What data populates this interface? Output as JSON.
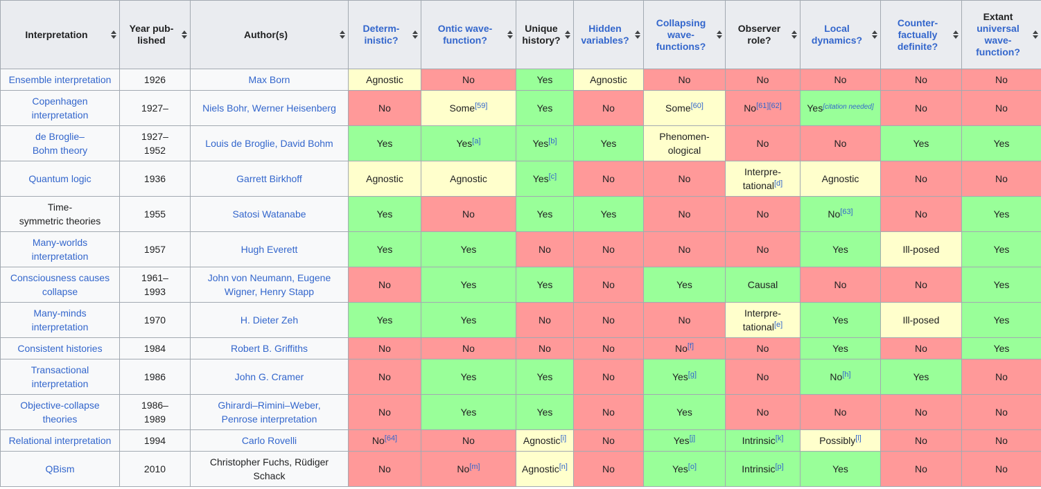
{
  "colors": {
    "yes": "#99FF99",
    "no": "#FF9999",
    "partial": "#FFFFCC"
  },
  "table": {
    "headers": [
      {
        "id": "interpretation",
        "segments": [
          {
            "text": "Interpretation",
            "link": false
          }
        ]
      },
      {
        "id": "year-published",
        "segments": [
          {
            "text": "Year pub-\nlished",
            "link": false
          }
        ]
      },
      {
        "id": "authors",
        "segments": [
          {
            "text": "Author(s)",
            "link": false
          }
        ]
      },
      {
        "id": "deterministic",
        "segments": [
          {
            "text": "Determ-\ninistic?",
            "link": true
          }
        ]
      },
      {
        "id": "ontic-wave-function",
        "segments": [
          {
            "text": "Ontic wave-\nfunction?",
            "link": true
          }
        ]
      },
      {
        "id": "unique-history",
        "segments": [
          {
            "text": "Unique\nhistory?",
            "link": false
          }
        ]
      },
      {
        "id": "hidden-variables",
        "segments": [
          {
            "text": "Hidden\nvariables?",
            "link": true
          }
        ]
      },
      {
        "id": "collapsing-wave-functions",
        "segments": [
          {
            "text": "Collapsing\nwave-\nfunctions?",
            "link": true
          }
        ]
      },
      {
        "id": "observer-role",
        "segments": [
          {
            "text": "Observer\nrole?",
            "link": false
          }
        ]
      },
      {
        "id": "local-dynamics",
        "segments": [
          {
            "text": "Local\ndynamics?",
            "link": true
          }
        ]
      },
      {
        "id": "counterfactually-definite",
        "segments": [
          {
            "text": "Counter-\nfactually\ndefinite?",
            "link": true
          }
        ]
      },
      {
        "id": "extant-universal-wave-function",
        "segments": [
          {
            "text": "Extant\n",
            "link": false
          },
          {
            "text": "universal\nwave-\nfunction?",
            "link": true
          }
        ]
      }
    ],
    "rows": [
      {
        "interpretation": {
          "text": "Ensemble interpretation",
          "link": true
        },
        "year": "1926",
        "authors": {
          "text": "Max Born",
          "link": true
        },
        "values": [
          {
            "text": "Agnostic",
            "color": "partial"
          },
          {
            "text": "No",
            "color": "no"
          },
          {
            "text": "Yes",
            "color": "yes"
          },
          {
            "text": "Agnostic",
            "color": "partial"
          },
          {
            "text": "No",
            "color": "no"
          },
          {
            "text": "No",
            "color": "no"
          },
          {
            "text": "No",
            "color": "no"
          },
          {
            "text": "No",
            "color": "no"
          },
          {
            "text": "No",
            "color": "no"
          }
        ]
      },
      {
        "interpretation": {
          "text": "Copenhagen\ninterpretation",
          "link": true
        },
        "year": "1927–",
        "authors": {
          "text": "Niels Bohr, Werner Heisenberg",
          "link": true
        },
        "values": [
          {
            "text": "No",
            "color": "no"
          },
          {
            "text": "Some",
            "sup": "[59]",
            "color": "partial"
          },
          {
            "text": "Yes",
            "color": "yes"
          },
          {
            "text": "No",
            "color": "no"
          },
          {
            "text": "Some",
            "sup": "[60]",
            "color": "partial"
          },
          {
            "text": "No",
            "sup": "[61][62]",
            "color": "no"
          },
          {
            "text": "Yes",
            "sup": "[citation needed]",
            "sup_italic": true,
            "color": "yes"
          },
          {
            "text": "No",
            "color": "no"
          },
          {
            "text": "No",
            "color": "no"
          }
        ]
      },
      {
        "interpretation": {
          "text": "de Broglie–\nBohm theory",
          "link": true
        },
        "year": "1927–\n1952",
        "authors": {
          "text": "Louis de Broglie, David Bohm",
          "link": true
        },
        "values": [
          {
            "text": "Yes",
            "color": "yes"
          },
          {
            "text": "Yes",
            "sup": "[a]",
            "color": "yes"
          },
          {
            "text": "Yes",
            "sup": "[b]",
            "color": "yes"
          },
          {
            "text": "Yes",
            "color": "yes"
          },
          {
            "text": "Phenomen-\nological",
            "color": "partial"
          },
          {
            "text": "No",
            "color": "no"
          },
          {
            "text": "No",
            "color": "no"
          },
          {
            "text": "Yes",
            "color": "yes"
          },
          {
            "text": "Yes",
            "color": "yes"
          }
        ]
      },
      {
        "interpretation": {
          "text": "Quantum logic",
          "link": true
        },
        "year": "1936",
        "authors": {
          "text": "Garrett Birkhoff",
          "link": true
        },
        "values": [
          {
            "text": "Agnostic",
            "color": "partial"
          },
          {
            "text": "Agnostic",
            "color": "partial"
          },
          {
            "text": "Yes",
            "sup": "[c]",
            "color": "yes"
          },
          {
            "text": "No",
            "color": "no"
          },
          {
            "text": "No",
            "color": "no"
          },
          {
            "text": "Interpre-\ntational",
            "sup": "[d]",
            "color": "partial"
          },
          {
            "text": "Agnostic",
            "color": "partial"
          },
          {
            "text": "No",
            "color": "no"
          },
          {
            "text": "No",
            "color": "no"
          }
        ]
      },
      {
        "interpretation": {
          "text": "Time-\nsymmetric theories",
          "link": false
        },
        "year": "1955",
        "authors": {
          "text": "Satosi Watanabe",
          "link": true
        },
        "values": [
          {
            "text": "Yes",
            "color": "yes"
          },
          {
            "text": "No",
            "color": "no"
          },
          {
            "text": "Yes",
            "color": "yes"
          },
          {
            "text": "Yes",
            "color": "yes"
          },
          {
            "text": "No",
            "color": "no"
          },
          {
            "text": "No",
            "color": "no"
          },
          {
            "text": "No",
            "sup": "[63]",
            "color": "yes"
          },
          {
            "text": "No",
            "color": "no"
          },
          {
            "text": "Yes",
            "color": "yes"
          }
        ]
      },
      {
        "interpretation": {
          "text": "Many-worlds\ninterpretation",
          "link": true
        },
        "year": "1957",
        "authors": {
          "text": "Hugh Everett",
          "link": true
        },
        "values": [
          {
            "text": "Yes",
            "color": "yes"
          },
          {
            "text": "Yes",
            "color": "yes"
          },
          {
            "text": "No",
            "color": "no"
          },
          {
            "text": "No",
            "color": "no"
          },
          {
            "text": "No",
            "color": "no"
          },
          {
            "text": "No",
            "color": "no"
          },
          {
            "text": "Yes",
            "color": "yes"
          },
          {
            "text": "Ill-posed",
            "color": "partial"
          },
          {
            "text": "Yes",
            "color": "yes"
          }
        ]
      },
      {
        "interpretation": {
          "text": "Consciousness causes\ncollapse",
          "link": true
        },
        "year": "1961–\n1993",
        "authors": {
          "text": "John von Neumann, Eugene\nWigner, Henry Stapp",
          "link": true
        },
        "values": [
          {
            "text": "No",
            "color": "no"
          },
          {
            "text": "Yes",
            "color": "yes"
          },
          {
            "text": "Yes",
            "color": "yes"
          },
          {
            "text": "No",
            "color": "no"
          },
          {
            "text": "Yes",
            "color": "yes"
          },
          {
            "text": "Causal",
            "color": "yes"
          },
          {
            "text": "No",
            "color": "no"
          },
          {
            "text": "No",
            "color": "no"
          },
          {
            "text": "Yes",
            "color": "yes"
          }
        ]
      },
      {
        "interpretation": {
          "text": "Many-minds\ninterpretation",
          "link": true
        },
        "year": "1970",
        "authors": {
          "text": "H. Dieter Zeh",
          "link": true
        },
        "values": [
          {
            "text": "Yes",
            "color": "yes"
          },
          {
            "text": "Yes",
            "color": "yes"
          },
          {
            "text": "No",
            "color": "no"
          },
          {
            "text": "No",
            "color": "no"
          },
          {
            "text": "No",
            "color": "no"
          },
          {
            "text": "Interpre-\ntational",
            "sup": "[e]",
            "color": "partial"
          },
          {
            "text": "Yes",
            "color": "yes"
          },
          {
            "text": "Ill-posed",
            "color": "partial"
          },
          {
            "text": "Yes",
            "color": "yes"
          }
        ]
      },
      {
        "interpretation": {
          "text": "Consistent histories",
          "link": true
        },
        "year": "1984",
        "authors": {
          "text": "Robert B. Griffiths",
          "link": true
        },
        "values": [
          {
            "text": "No",
            "color": "no"
          },
          {
            "text": "No",
            "color": "no"
          },
          {
            "text": "No",
            "color": "no"
          },
          {
            "text": "No",
            "color": "no"
          },
          {
            "text": "No",
            "sup": "[f]",
            "color": "no"
          },
          {
            "text": "No",
            "color": "no"
          },
          {
            "text": "Yes",
            "color": "yes"
          },
          {
            "text": "No",
            "color": "no"
          },
          {
            "text": "Yes",
            "color": "yes"
          }
        ]
      },
      {
        "interpretation": {
          "text": "Transactional\ninterpretation",
          "link": true
        },
        "year": "1986",
        "authors": {
          "text": "John G. Cramer",
          "link": true
        },
        "values": [
          {
            "text": "No",
            "color": "no"
          },
          {
            "text": "Yes",
            "color": "yes"
          },
          {
            "text": "Yes",
            "color": "yes"
          },
          {
            "text": "No",
            "color": "no"
          },
          {
            "text": "Yes",
            "sup": "[g]",
            "color": "yes"
          },
          {
            "text": "No",
            "color": "no"
          },
          {
            "text": "No",
            "sup": "[h]",
            "color": "yes"
          },
          {
            "text": "Yes",
            "color": "yes"
          },
          {
            "text": "No",
            "color": "no"
          }
        ]
      },
      {
        "interpretation": {
          "text": "Objective-collapse\ntheories",
          "link": true
        },
        "year": "1986–\n1989",
        "authors": {
          "text": "Ghirardi–Rimini–Weber,\nPenrose interpretation",
          "link": true
        },
        "values": [
          {
            "text": "No",
            "color": "no"
          },
          {
            "text": "Yes",
            "color": "yes"
          },
          {
            "text": "Yes",
            "color": "yes"
          },
          {
            "text": "No",
            "color": "no"
          },
          {
            "text": "Yes",
            "color": "yes"
          },
          {
            "text": "No",
            "color": "no"
          },
          {
            "text": "No",
            "color": "no"
          },
          {
            "text": "No",
            "color": "no"
          },
          {
            "text": "No",
            "color": "no"
          }
        ]
      },
      {
        "interpretation": {
          "text": "Relational interpretation",
          "link": true
        },
        "year": "1994",
        "authors": {
          "text": "Carlo Rovelli",
          "link": true
        },
        "values": [
          {
            "text": "No",
            "sup": "[64]",
            "color": "no"
          },
          {
            "text": "No",
            "color": "no"
          },
          {
            "text": "Agnostic",
            "sup": "[i]",
            "color": "partial"
          },
          {
            "text": "No",
            "color": "no"
          },
          {
            "text": "Yes",
            "sup": "[j]",
            "color": "yes"
          },
          {
            "text": "Intrinsic",
            "sup": "[k]",
            "color": "yes"
          },
          {
            "text": "Possibly",
            "sup": "[l]",
            "color": "partial"
          },
          {
            "text": "No",
            "color": "no"
          },
          {
            "text": "No",
            "color": "no"
          }
        ]
      },
      {
        "interpretation": {
          "text": "QBism",
          "link": true
        },
        "year": "2010",
        "authors": {
          "text": "Christopher Fuchs, Rüdiger\nSchack",
          "link": false
        },
        "values": [
          {
            "text": "No",
            "color": "no"
          },
          {
            "text": "No",
            "sup": "[m]",
            "color": "no"
          },
          {
            "text": "Agnostic",
            "sup": "[n]",
            "color": "partial"
          },
          {
            "text": "No",
            "color": "no"
          },
          {
            "text": "Yes",
            "sup": "[o]",
            "color": "yes"
          },
          {
            "text": "Intrinsic",
            "sup": "[p]",
            "color": "yes"
          },
          {
            "text": "Yes",
            "color": "yes"
          },
          {
            "text": "No",
            "color": "no"
          },
          {
            "text": "No",
            "color": "no"
          }
        ]
      }
    ]
  }
}
